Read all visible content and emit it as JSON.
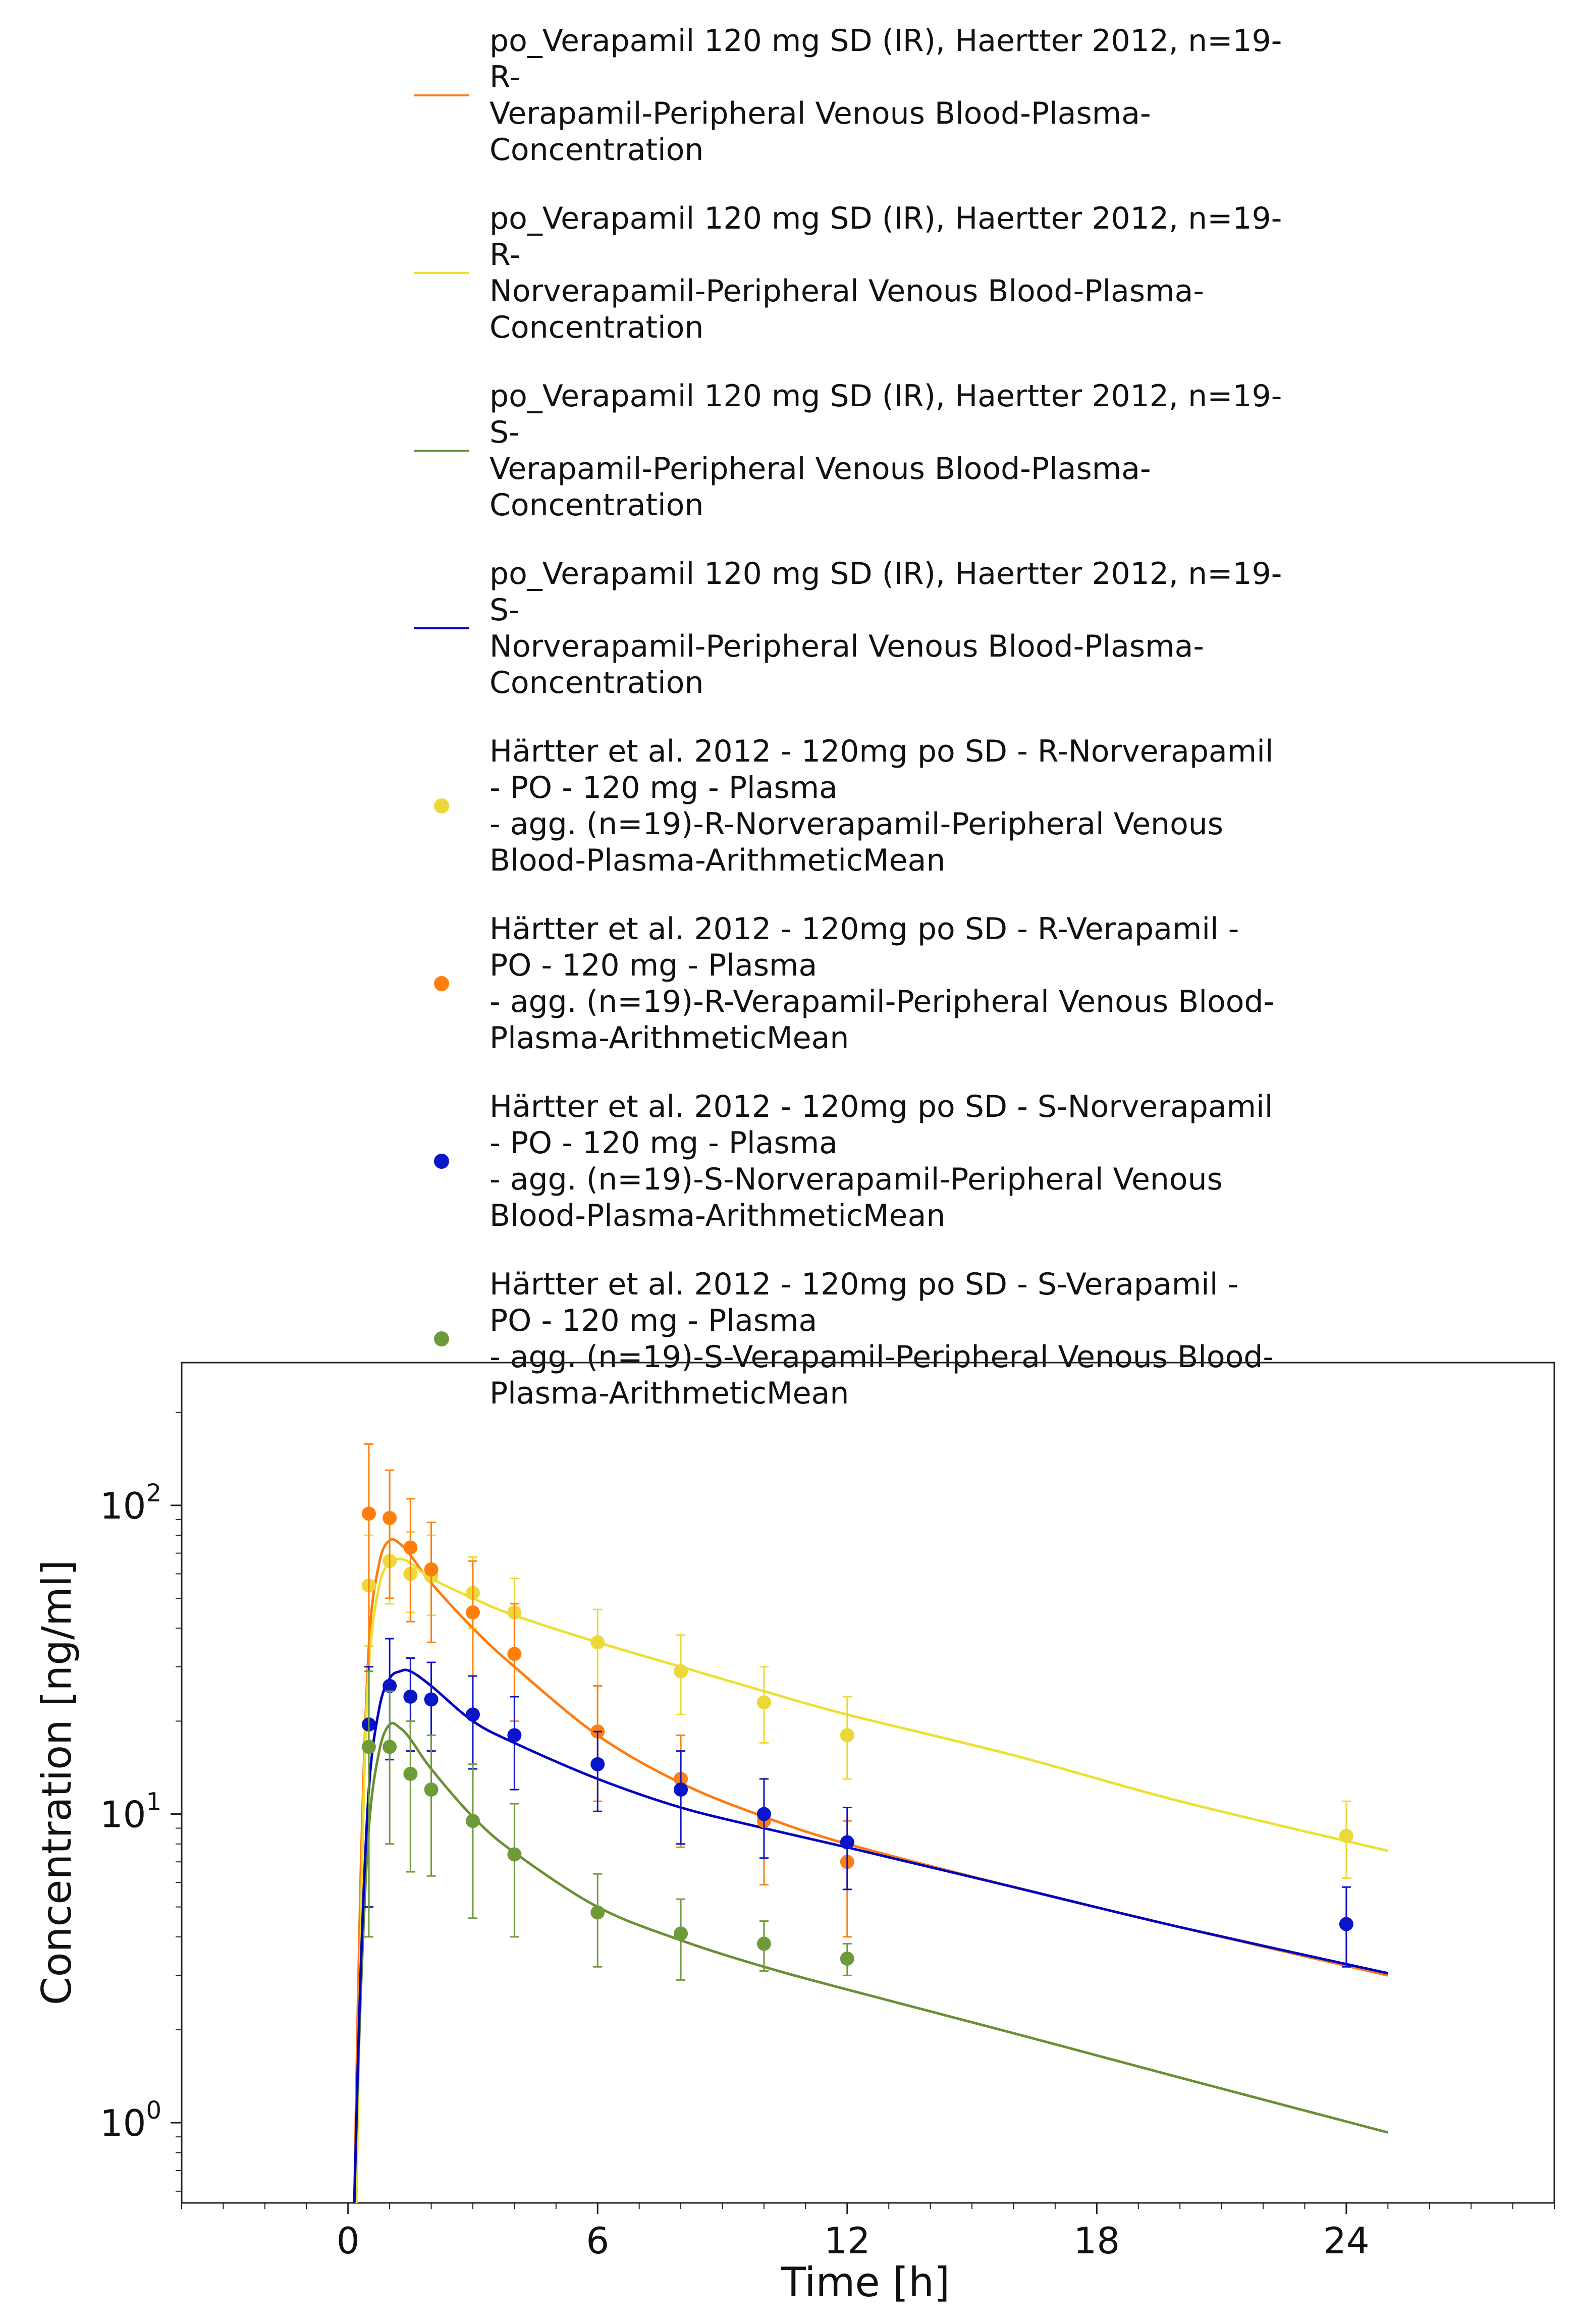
{
  "chart_data": {
    "type": "line",
    "title": "",
    "xlabel": "Time [h]",
    "ylabel": "Concentration [ng/ml]",
    "xlim": [
      -4,
      29
    ],
    "ylim": [
      0.55,
      290
    ],
    "yscale": "log",
    "x_ticks": [
      0,
      6,
      12,
      18,
      24
    ],
    "x_tick_labels": [
      "0",
      "6",
      "12",
      "18",
      "24"
    ],
    "y_ticks": [
      1,
      10,
      100
    ],
    "y_tick_labels": [
      {
        "base": "10",
        "exp": "0"
      },
      {
        "base": "10",
        "exp": "1"
      },
      {
        "base": "10",
        "exp": "2"
      }
    ],
    "grid": false,
    "legend_position": "above plot",
    "series": [
      {
        "name": "po_Verapamil 120 mg SD (IR), Haertter 2012, n=19-\nR-\nVerapamil-Peripheral Venous Blood-Plasma-\nConcentration",
        "kind": "line",
        "color": "#ff7a10",
        "x": [
          0.15,
          0.3,
          0.5,
          0.75,
          1.0,
          1.25,
          1.5,
          2,
          3,
          4,
          6,
          8,
          10,
          12,
          16,
          20,
          25
        ],
        "y": [
          0.55,
          6,
          35,
          65,
          77,
          75,
          69,
          56,
          40,
          30,
          18,
          12.6,
          9.8,
          8.0,
          5.8,
          4.3,
          3.0
        ]
      },
      {
        "name": "po_Verapamil 120 mg SD (IR), Haertter 2012, n=19-\nR-\nNorverapamil-Peripheral Venous Blood-Plasma-\nConcentration",
        "kind": "line",
        "color": "#ece030",
        "x": [
          0.2,
          0.35,
          0.5,
          0.75,
          1.0,
          1.25,
          1.5,
          2,
          3,
          4,
          6,
          8,
          10,
          12,
          16,
          20,
          25
        ],
        "y": [
          0.55,
          8,
          30,
          55,
          65,
          67,
          65,
          58,
          50,
          44,
          36,
          30,
          25,
          21,
          15.5,
          11,
          7.6
        ]
      },
      {
        "name": "po_Verapamil 120 mg SD (IR), Haertter 2012, n=19-\nS-\nVerapamil-Peripheral Venous Blood-Plasma-\nConcentration",
        "kind": "line",
        "color": "#6a8f32",
        "x": [
          0.15,
          0.3,
          0.5,
          0.75,
          1.0,
          1.25,
          1.5,
          2,
          3,
          4,
          6,
          8,
          10,
          12,
          16,
          20,
          25
        ],
        "y": [
          0.55,
          2.5,
          9,
          16,
          19.5,
          19,
          17.5,
          14,
          9.8,
          7.5,
          5.0,
          3.9,
          3.2,
          2.7,
          1.95,
          1.4,
          0.93
        ]
      },
      {
        "name": "po_Verapamil 120 mg SD (IR), Haertter 2012, n=19-\nS-\nNorverapamil-Peripheral Venous Blood-Plasma-\nConcentration",
        "kind": "line",
        "color": "#0000c0",
        "x": [
          0.15,
          0.3,
          0.5,
          0.75,
          1.0,
          1.25,
          1.5,
          2,
          3,
          4,
          6,
          8,
          10,
          12,
          16,
          20,
          25
        ],
        "y": [
          0.55,
          3,
          12,
          22,
          27.5,
          29,
          29,
          26,
          20,
          17,
          13,
          10.5,
          9.0,
          7.8,
          5.8,
          4.3,
          3.05
        ]
      },
      {
        "name": "Härtter et al. 2012 - 120mg po SD - R-Norverapamil\n- PO - 120 mg - Plasma\n- agg. (n=19)-R-Norverapamil-Peripheral Venous\nBlood-Plasma-ArithmeticMean",
        "kind": "scatter",
        "color": "#ecd838",
        "x": [
          0.5,
          1,
          1.5,
          2,
          3,
          4,
          6,
          8,
          10,
          12,
          24
        ],
        "y": [
          55,
          66,
          60,
          59,
          52,
          45,
          36,
          29,
          23,
          18,
          8.5
        ],
        "err_low": [
          35,
          48,
          45,
          44,
          40,
          34,
          26,
          21,
          17,
          13,
          6.2
        ],
        "err_high": [
          80,
          90,
          82,
          80,
          68,
          58,
          46,
          38,
          30,
          24,
          11
        ]
      },
      {
        "name": "Härtter et al. 2012 - 120mg po SD - R-Verapamil -\nPO - 120 mg - Plasma\n- agg. (n=19)-R-Verapamil-Peripheral Venous Blood-\nPlasma-ArithmeticMean",
        "kind": "scatter",
        "color": "#ff7f0e",
        "x": [
          0.5,
          1,
          1.5,
          2,
          3,
          4,
          6,
          8,
          10,
          12
        ],
        "y": [
          94,
          91,
          73,
          62,
          45,
          33,
          18.5,
          13,
          9.5,
          7.0
        ],
        "err_low": [
          30,
          50,
          42,
          36,
          28,
          20,
          11,
          7.8,
          5.9,
          4.0
        ],
        "err_high": [
          158,
          130,
          105,
          88,
          66,
          48,
          26,
          18,
          13,
          9.5
        ]
      },
      {
        "name": "Härtter et al. 2012 - 120mg po SD - S-Norverapamil\n- PO - 120 mg - Plasma\n- agg. (n=19)-S-Norverapamil-Peripheral Venous\nBlood-Plasma-ArithmeticMean",
        "kind": "scatter",
        "color": "#0a14c8",
        "x": [
          0.5,
          1,
          1.5,
          2,
          3,
          4,
          6,
          8,
          10,
          12,
          24
        ],
        "y": [
          19.5,
          26,
          24,
          23.5,
          21,
          18,
          14.5,
          12,
          10,
          8.1,
          4.4
        ],
        "err_low": [
          5.0,
          15,
          16,
          16,
          14,
          12,
          10.2,
          8.0,
          7.2,
          5.7,
          3.2
        ],
        "err_high": [
          30,
          37,
          32,
          31,
          28,
          24,
          18.5,
          16,
          13,
          10.5,
          5.8
        ]
      },
      {
        "name": "Härtter et al. 2012 - 120mg po SD - S-Verapamil -\nPO - 120 mg - Plasma\n- agg. (n=19)-S-Verapamil-Peripheral Venous Blood-\nPlasma-ArithmeticMean",
        "kind": "scatter",
        "color": "#6f9a3a",
        "x": [
          0.5,
          1,
          1.5,
          2,
          3,
          4,
          6,
          8,
          10,
          12
        ],
        "y": [
          16.5,
          16.5,
          13.5,
          12,
          9.5,
          7.4,
          4.8,
          4.1,
          3.8,
          3.4
        ],
        "err_low": [
          4.0,
          8.0,
          6.5,
          6.3,
          4.6,
          4.0,
          3.2,
          2.9,
          3.1,
          3.0
        ],
        "err_high": [
          29,
          25,
          20,
          18,
          14.5,
          10.8,
          6.4,
          5.3,
          4.5,
          3.8
        ]
      }
    ]
  }
}
